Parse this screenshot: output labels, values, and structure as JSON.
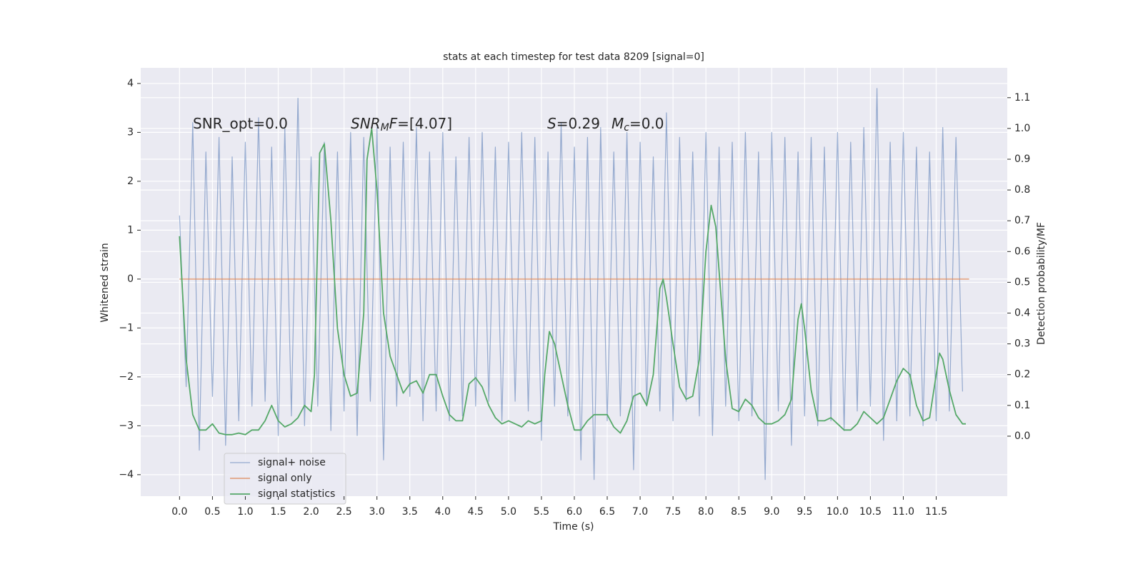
{
  "chart_data": {
    "type": "line",
    "title": "stats at each timestep for test data 8209 [signal=0]",
    "xlabel": "Time (s)",
    "ylabel": "Whitened strain",
    "y2label": "Detection probability/MF",
    "annotations": [
      [
        "SNR_opt=0.0"
      ],
      [
        "SNR",
        "M",
        "F",
        "=[4.07]"
      ],
      [
        "S",
        "=0.29",
        "M",
        "c",
        "=0.0"
      ]
    ],
    "xlim": [
      -0.59,
      12.58
    ],
    "ylim": [
      -4.44,
      4.32
    ],
    "y2lim": [
      -0.195,
      1.197
    ],
    "xticks": [
      {
        "value": 0,
        "label": "0.0"
      },
      0.5,
      {
        "value": 1,
        "label": "1.0"
      },
      1.5,
      {
        "value": 2,
        "label": "2.0"
      },
      2.5,
      {
        "value": 3,
        "label": "3.0"
      },
      3.5,
      {
        "value": 4,
        "label": "4.0"
      },
      4.5,
      {
        "value": 5,
        "label": "5.0"
      },
      5.5,
      {
        "value": 6,
        "label": "6.0"
      },
      6.5,
      {
        "value": 7,
        "label": "7.0"
      },
      7.5,
      {
        "value": 8,
        "label": "8.0"
      },
      8.5,
      {
        "value": 9,
        "label": "9.0"
      },
      9.5,
      {
        "value": 10,
        "label": "10.0"
      },
      10.5,
      {
        "value": 11,
        "label": "11.0"
      },
      11.5
    ],
    "yticks": [
      {
        "value": -4,
        "label": "−4"
      },
      {
        "value": -3,
        "label": "−3"
      },
      {
        "value": -2,
        "label": "−2"
      },
      {
        "value": -1,
        "label": "−1"
      },
      0,
      1,
      2,
      3,
      4
    ],
    "y2ticks": [
      {
        "value": 0,
        "label": "0.0"
      },
      0.1,
      0.2,
      0.3,
      0.4,
      0.5,
      0.6,
      0.7,
      0.8,
      0.9,
      {
        "value": 1,
        "label": "1.0"
      },
      1.1
    ],
    "grid": true,
    "legend": "lower left",
    "series": [
      {
        "name": "signal+ noise",
        "color": "#4c72b0",
        "axis": "y",
        "x": [
          0,
          0.1,
          0.2,
          0.3,
          0.4,
          0.5,
          0.6,
          0.7,
          0.8,
          0.9,
          1,
          1.1,
          1.2,
          1.3,
          1.4,
          1.5,
          1.6,
          1.7,
          1.8,
          1.9,
          2,
          2.1,
          2.2,
          2.3,
          2.4,
          2.5,
          2.6,
          2.7,
          2.8,
          2.9,
          3,
          3.1,
          3.2,
          3.3,
          3.4,
          3.5,
          3.6,
          3.7,
          3.8,
          3.9,
          4,
          4.1,
          4.2,
          4.3,
          4.4,
          4.5,
          4.6,
          4.7,
          4.8,
          4.9,
          5,
          5.1,
          5.2,
          5.3,
          5.4,
          5.5,
          5.6,
          5.7,
          5.8,
          5.9,
          6,
          6.1,
          6.2,
          6.3,
          6.4,
          6.5,
          6.6,
          6.7,
          6.8,
          6.9,
          7,
          7.1,
          7.2,
          7.3,
          7.4,
          7.5,
          7.6,
          7.7,
          7.8,
          7.9,
          8,
          8.1,
          8.2,
          8.3,
          8.4,
          8.5,
          8.6,
          8.7,
          8.8,
          8.9,
          9,
          9.1,
          9.2,
          9.3,
          9.4,
          9.5,
          9.6,
          9.7,
          9.8,
          9.9,
          10,
          10.1,
          10.2,
          10.3,
          10.4,
          10.5,
          10.6,
          10.7,
          10.8,
          10.9,
          11,
          11.1,
          11.2,
          11.3,
          11.4,
          11.5,
          11.6,
          11.7,
          11.8,
          11.9
        ],
        "values": [
          1.3,
          -2.2,
          3.2,
          -3.5,
          2.6,
          -2.4,
          2.9,
          -3.4,
          2.5,
          -2.9,
          2.8,
          -2.6,
          3.3,
          -2.5,
          2.7,
          -3.2,
          3.1,
          -2.8,
          3.7,
          -3.0,
          2.5,
          -2.6,
          2.8,
          -3.1,
          2.6,
          -2.7,
          3.0,
          -3.2,
          2.9,
          -2.5,
          3.1,
          -3.7,
          2.7,
          -2.6,
          2.8,
          -2.4,
          3.1,
          -2.9,
          2.6,
          -2.7,
          3.0,
          -2.9,
          2.5,
          -2.8,
          2.9,
          -2.6,
          3.0,
          -2.5,
          2.7,
          -2.9,
          2.8,
          -2.5,
          3.0,
          -2.7,
          2.9,
          -3.3,
          2.6,
          -2.6,
          3.2,
          -2.8,
          2.7,
          -3.7,
          2.9,
          -4.1,
          3.1,
          -2.9,
          2.6,
          -2.8,
          3.0,
          -3.9,
          2.8,
          -2.6,
          2.5,
          -2.7,
          3.4,
          -2.9,
          2.9,
          -2.5,
          2.6,
          -2.8,
          3.0,
          -3.2,
          2.7,
          -2.6,
          2.8,
          -2.9,
          3.0,
          -2.8,
          2.6,
          -4.1,
          3.0,
          -2.7,
          2.9,
          -3.4,
          2.6,
          -2.8,
          2.9,
          -3.0,
          2.7,
          -2.9,
          3.0,
          -3.1,
          2.8,
          -2.7,
          3.1,
          -2.6,
          3.9,
          -3.3,
          2.8,
          -2.9,
          3.0,
          -2.8,
          2.7,
          -3.0,
          2.6,
          -2.9,
          3.1,
          -2.7,
          2.9,
          -2.3
        ]
      },
      {
        "name": "signal only",
        "color": "#dd8452",
        "axis": "y",
        "x": [
          0,
          12
        ],
        "values": [
          0,
          0
        ]
      },
      {
        "name": "signal statistics",
        "color": "#55a868",
        "axis": "y2",
        "x": [
          0,
          0.1,
          0.2,
          0.3,
          0.4,
          0.5,
          0.6,
          0.7,
          0.8,
          0.9,
          1,
          1.1,
          1.2,
          1.3,
          1.4,
          1.5,
          1.6,
          1.7,
          1.8,
          1.9,
          2,
          2.05,
          2.13,
          2.2,
          2.3,
          2.4,
          2.5,
          2.6,
          2.7,
          2.8,
          2.85,
          2.92,
          3,
          3.1,
          3.2,
          3.3,
          3.4,
          3.5,
          3.6,
          3.7,
          3.8,
          3.9,
          4,
          4.1,
          4.2,
          4.3,
          4.4,
          4.5,
          4.6,
          4.7,
          4.8,
          4.9,
          5,
          5.1,
          5.2,
          5.3,
          5.4,
          5.5,
          5.55,
          5.62,
          5.7,
          5.8,
          5.9,
          6,
          6.1,
          6.2,
          6.3,
          6.4,
          6.5,
          6.6,
          6.7,
          6.8,
          6.9,
          7,
          7.1,
          7.2,
          7.3,
          7.35,
          7.4,
          7.5,
          7.6,
          7.7,
          7.8,
          7.9,
          8,
          8.08,
          8.15,
          8.3,
          8.4,
          8.5,
          8.6,
          8.7,
          8.8,
          8.9,
          9,
          9.1,
          9.2,
          9.3,
          9.4,
          9.45,
          9.5,
          9.6,
          9.7,
          9.8,
          9.9,
          10,
          10.1,
          10.2,
          10.3,
          10.4,
          10.5,
          10.6,
          10.7,
          10.8,
          10.9,
          11,
          11.1,
          11.2,
          11.3,
          11.4,
          11.5,
          11.55,
          11.6,
          11.7,
          11.8,
          11.9,
          11.95
        ],
        "values": [
          0.65,
          0.25,
          0.07,
          0.02,
          0.02,
          0.04,
          0.01,
          0.005,
          0.005,
          0.01,
          0.005,
          0.02,
          0.02,
          0.05,
          0.1,
          0.05,
          0.03,
          0.04,
          0.06,
          0.1,
          0.08,
          0.2,
          0.92,
          0.95,
          0.7,
          0.35,
          0.2,
          0.13,
          0.14,
          0.4,
          0.9,
          1.0,
          0.8,
          0.4,
          0.26,
          0.2,
          0.14,
          0.17,
          0.18,
          0.14,
          0.2,
          0.2,
          0.13,
          0.07,
          0.05,
          0.05,
          0.17,
          0.19,
          0.16,
          0.1,
          0.06,
          0.04,
          0.05,
          0.04,
          0.03,
          0.05,
          0.04,
          0.05,
          0.2,
          0.34,
          0.3,
          0.2,
          0.1,
          0.02,
          0.02,
          0.05,
          0.07,
          0.07,
          0.07,
          0.03,
          0.01,
          0.05,
          0.13,
          0.14,
          0.1,
          0.2,
          0.48,
          0.51,
          0.45,
          0.3,
          0.16,
          0.12,
          0.13,
          0.25,
          0.6,
          0.75,
          0.68,
          0.25,
          0.09,
          0.08,
          0.12,
          0.1,
          0.06,
          0.04,
          0.04,
          0.05,
          0.07,
          0.12,
          0.38,
          0.43,
          0.35,
          0.15,
          0.05,
          0.05,
          0.06,
          0.04,
          0.02,
          0.02,
          0.04,
          0.08,
          0.06,
          0.04,
          0.06,
          0.12,
          0.18,
          0.22,
          0.2,
          0.1,
          0.05,
          0.06,
          0.2,
          0.27,
          0.25,
          0.15,
          0.07,
          0.04,
          0.04
        ]
      }
    ]
  }
}
